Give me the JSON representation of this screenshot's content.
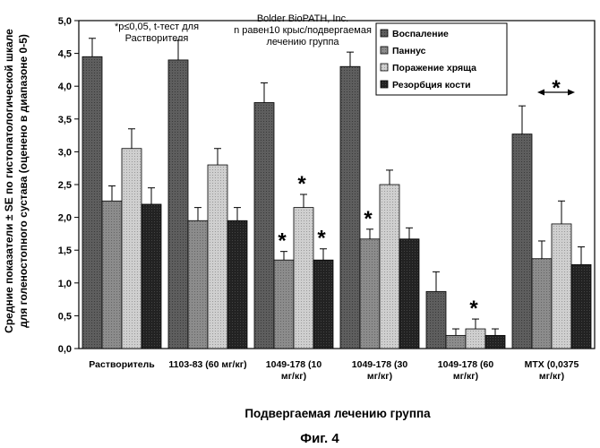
{
  "chart_data": {
    "type": "bar",
    "ylabel_lines": [
      "Средние показатели ± SE по гистопатологической шкале",
      "для голеностопного сустава (оценено в диапазоне 0-5)"
    ],
    "xlabel": "Подвергаемая лечению группа",
    "ylim": [
      0,
      5
    ],
    "yticks": [
      "0,0",
      "0,5",
      "1,0",
      "1,5",
      "2,0",
      "2,5",
      "3,0",
      "3,5",
      "4,0",
      "4,5",
      "5,0"
    ],
    "grid": false,
    "legend_position": "top-right",
    "categories": [
      [
        "Растворитель"
      ],
      [
        "1103-83 (60 мг/кг)"
      ],
      [
        "1049-178 (10",
        "мг/кг)"
      ],
      [
        "1049-178 (30",
        "мг/кг)"
      ],
      [
        "1049-178 (60",
        "мг/кг)"
      ],
      [
        "MTX (0,0375",
        "мг/кг)"
      ]
    ],
    "series": [
      {
        "name": "Воспаление",
        "color": "#5a5a5a",
        "values": [
          4.45,
          4.4,
          3.75,
          4.3,
          0.87,
          3.27
        ],
        "errors": [
          0.28,
          0.3,
          0.3,
          0.22,
          0.3,
          0.43
        ]
      },
      {
        "name": "Паннус",
        "color": "#8a8a8a",
        "values": [
          2.25,
          1.95,
          1.35,
          1.67,
          0.2,
          1.37
        ],
        "errors": [
          0.23,
          0.2,
          0.13,
          0.15,
          0.1,
          0.27
        ]
      },
      {
        "name": "Поражение хряща",
        "color": "#c8c8c8",
        "values": [
          3.05,
          2.8,
          2.15,
          2.5,
          0.3,
          1.9
        ],
        "errors": [
          0.3,
          0.25,
          0.2,
          0.22,
          0.15,
          0.35
        ]
      },
      {
        "name": "Резорбция кости",
        "color": "#2a2a2a",
        "values": [
          2.2,
          1.95,
          1.35,
          1.67,
          0.2,
          1.28
        ],
        "errors": [
          0.25,
          0.2,
          0.17,
          0.17,
          0.1,
          0.27
        ]
      }
    ],
    "annotations": {
      "significance_note": [
        "*p≤0,05, t-тест для",
        "Растворителя"
      ],
      "source_note": [
        "Bolder BioPATH, Inc.",
        "n равен10 крыс/подвергаемая",
        "лечению группа"
      ],
      "star": "*"
    },
    "significance_marks": [
      {
        "category": 2,
        "series": 1
      },
      {
        "category": 2,
        "series": 2
      },
      {
        "category": 2,
        "series": 3
      },
      {
        "category": 3,
        "series": 1
      },
      {
        "category": 4,
        "series": 2
      }
    ],
    "significance_span": {
      "category": 5
    },
    "figure_caption": "Фиг. 4"
  }
}
